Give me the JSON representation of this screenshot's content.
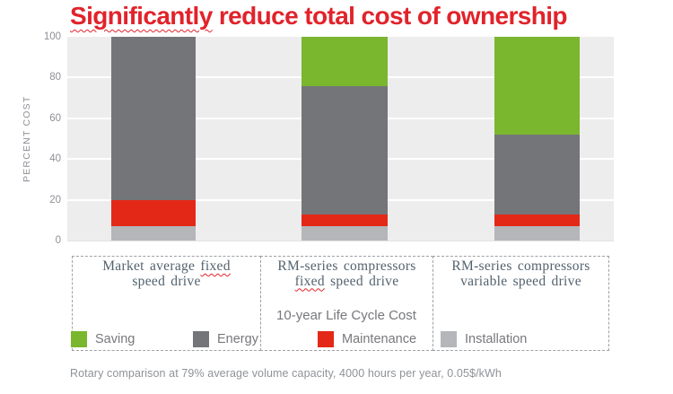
{
  "title": {
    "misspelled": "Significantly",
    "rest": "reduce total cost of ownership"
  },
  "colors": {
    "title_red": "#e1232b",
    "saving_green": "#7ab62e",
    "energy_gray": "#747579",
    "maintenance_red": "#e42817",
    "installation_gray": "#b4b6b9",
    "plot_background": "#ededee",
    "category_text": "#53626e",
    "muted_text": "#77787b"
  },
  "spellcheck": {
    "words": [
      "fixed"
    ]
  },
  "chart_data": {
    "type": "bar",
    "stacked": true,
    "title": "Significantly reduce total cost of ownership",
    "xlabel": "",
    "ylabel": "PERCENT COST",
    "ylim": [
      0,
      100
    ],
    "yticks": [
      0,
      20,
      40,
      60,
      80,
      100
    ],
    "grid": "horizontal-white-on-gray",
    "legend_position": "bottom",
    "categories": [
      "Market average fixed speed drive",
      "RM-series compressors fixed speed drive",
      "RM-series compressors variable speed drive"
    ],
    "series": [
      {
        "name": "Installation",
        "color": "#b4b6b9",
        "values": [
          7,
          7,
          7
        ]
      },
      {
        "name": "Maintenance",
        "color": "#e42817",
        "values": [
          13,
          6,
          6
        ]
      },
      {
        "name": "Energy",
        "color": "#747579",
        "values": [
          80,
          63,
          39
        ]
      },
      {
        "name": "Saving",
        "color": "#7ab62e",
        "values": [
          0,
          24,
          48
        ]
      }
    ],
    "annotation": "10-year Life Cycle Cost",
    "footnote": "Rotary comparison at 79% average volume capacity, 4000 hours per year, 0.05$/kWh"
  },
  "category_boxes": [
    {
      "lines": [
        "Market average fixed",
        "speed drive"
      ]
    },
    {
      "lines": [
        "RM-series compressors",
        "fixed speed drive"
      ]
    },
    {
      "lines": [
        "RM-series compressors",
        "variable speed drive"
      ]
    }
  ],
  "legend": {
    "items": [
      {
        "label": "Saving",
        "color": "#7ab62e"
      },
      {
        "label": "Energy",
        "color": "#747579"
      },
      {
        "label": "Maintenance",
        "color": "#e42817"
      },
      {
        "label": "Installation",
        "color": "#b4b6b9"
      }
    ]
  }
}
